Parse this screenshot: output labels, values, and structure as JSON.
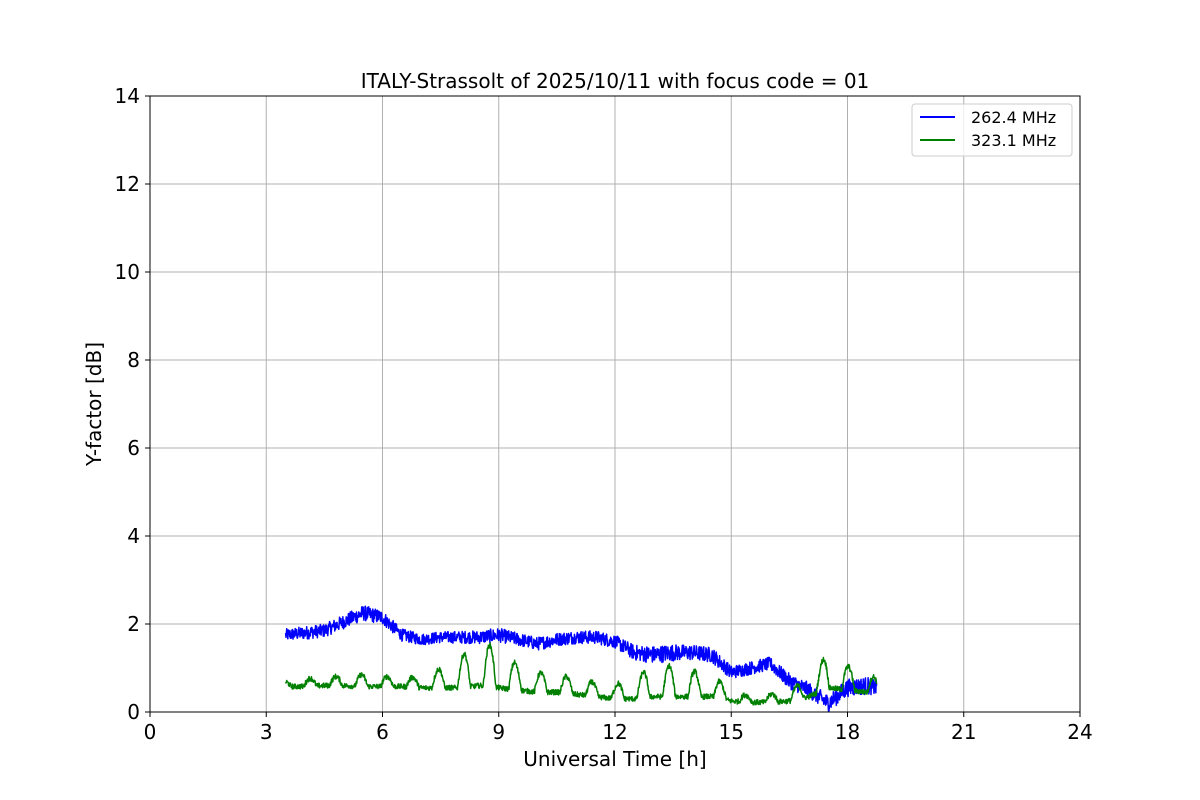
{
  "chart_data": {
    "type": "line",
    "title": "ITALY-Strassolt of 2025/10/11 with focus code = 01",
    "xlabel": "Universal Time [h]",
    "ylabel": "Y-factor [dB]",
    "xlim": [
      0,
      24
    ],
    "ylim": [
      0,
      14
    ],
    "xticks": [
      0,
      3,
      6,
      9,
      12,
      15,
      18,
      21,
      24
    ],
    "yticks": [
      0,
      2,
      4,
      6,
      8,
      10,
      12,
      14
    ],
    "xtick_labels": [
      "0",
      "3",
      "6",
      "9",
      "12",
      "15",
      "18",
      "21",
      "24"
    ],
    "ytick_labels": [
      "0",
      "2",
      "4",
      "6",
      "8",
      "10",
      "12",
      "14"
    ],
    "grid": true,
    "legend_position": "top-right",
    "series": [
      {
        "name": "262.4 MHz",
        "color": "#0000ff",
        "x": [
          3.5,
          4.0,
          4.5,
          5.0,
          5.5,
          6.0,
          6.5,
          7.0,
          7.5,
          8.0,
          8.5,
          9.0,
          9.5,
          10.0,
          10.5,
          11.0,
          11.5,
          12.0,
          12.5,
          13.0,
          13.5,
          14.0,
          14.5,
          15.0,
          15.5,
          16.0,
          16.5,
          17.0,
          17.5,
          18.0,
          18.5,
          18.75
        ],
        "values": [
          1.75,
          1.8,
          1.85,
          2.05,
          2.25,
          2.15,
          1.75,
          1.65,
          1.7,
          1.7,
          1.7,
          1.75,
          1.65,
          1.55,
          1.65,
          1.7,
          1.7,
          1.6,
          1.35,
          1.3,
          1.35,
          1.35,
          1.3,
          0.9,
          1.0,
          1.1,
          0.7,
          0.5,
          0.2,
          0.55,
          0.6,
          0.55
        ],
        "noise_band": [
          0.28,
          0.3,
          0.3,
          0.32,
          0.35,
          0.32,
          0.28,
          0.26,
          0.26,
          0.28,
          0.3,
          0.32,
          0.3,
          0.3,
          0.3,
          0.3,
          0.3,
          0.3,
          0.35,
          0.4,
          0.38,
          0.35,
          0.35,
          0.3,
          0.3,
          0.3,
          0.35,
          0.35,
          0.4,
          0.4,
          0.4,
          0.35
        ]
      },
      {
        "name": "323.1 MHz",
        "color": "#008000",
        "x": [
          3.5,
          4.0,
          4.5,
          5.0,
          5.5,
          6.0,
          6.5,
          7.0,
          7.5,
          8.0,
          8.5,
          9.0,
          9.5,
          10.0,
          10.5,
          11.0,
          11.5,
          12.0,
          12.5,
          13.0,
          13.5,
          14.0,
          14.5,
          15.0,
          15.5,
          16.0,
          16.5,
          17.0,
          17.5,
          18.0,
          18.5,
          18.75
        ],
        "values": [
          0.58,
          0.58,
          0.6,
          0.6,
          0.58,
          0.58,
          0.58,
          0.55,
          0.55,
          0.55,
          0.6,
          0.55,
          0.5,
          0.45,
          0.45,
          0.4,
          0.35,
          0.3,
          0.3,
          0.35,
          0.35,
          0.35,
          0.35,
          0.25,
          0.22,
          0.22,
          0.25,
          0.35,
          0.55,
          0.5,
          0.45,
          0.4
        ],
        "noise_band": [
          0.12,
          0.2,
          0.2,
          0.25,
          0.3,
          0.25,
          0.25,
          0.25,
          0.5,
          0.8,
          1.0,
          1.1,
          0.6,
          0.5,
          0.45,
          0.4,
          0.35,
          0.35,
          0.6,
          0.7,
          0.8,
          0.65,
          0.55,
          0.25,
          0.15,
          0.2,
          0.3,
          0.4,
          0.9,
          0.6,
          0.5,
          0.4
        ]
      }
    ]
  }
}
